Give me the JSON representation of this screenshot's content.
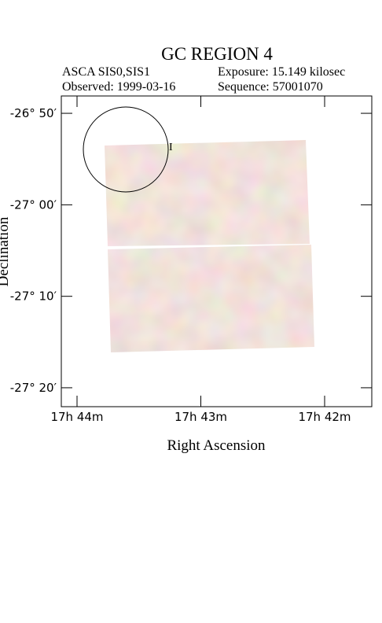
{
  "chart_data": {
    "type": "image",
    "title": "GC REGION 4",
    "info": [
      "ASCA SIS0,SIS1",
      "Exposure: 15.149 kilosec",
      "Observed: 1999-03-16",
      "Sequence: 57001070"
    ],
    "xlabel": "Right Ascension",
    "ylabel": "Declination",
    "xlim": [
      44.127,
      41.619
    ],
    "xticks": [
      {
        "value": 44,
        "label": "17h 44m"
      },
      {
        "value": 43,
        "label": "17h 43m"
      },
      {
        "value": 42,
        "label": "17h 42m"
      }
    ],
    "ylim": [
      -26.8017,
      -27.3678
    ],
    "yticks": [
      {
        "value": -26.8333,
        "label": "-26° 50′"
      },
      {
        "value": -27,
        "label": "-27° 00′"
      },
      {
        "value": -27.1667,
        "label": "-27° 10′"
      },
      {
        "value": -27.3333,
        "label": "-27° 20′"
      }
    ],
    "annotation": "I"
  }
}
